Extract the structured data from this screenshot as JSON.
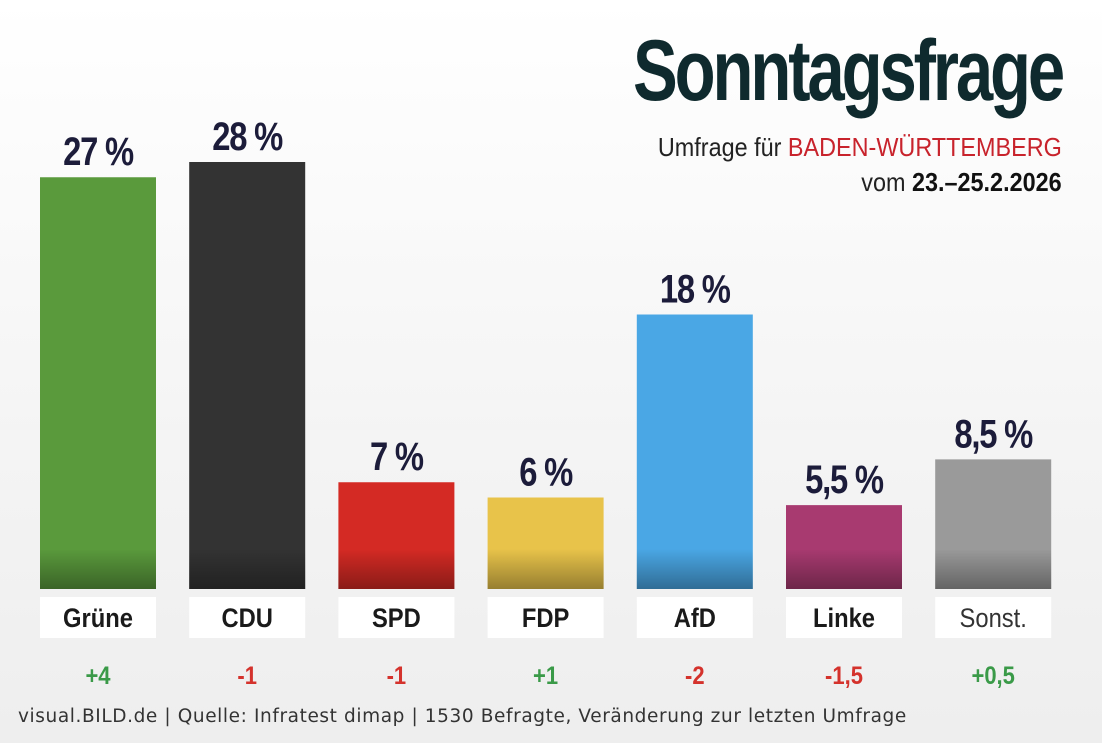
{
  "chart_data": {
    "type": "bar",
    "title": "Sonntagsfrage",
    "subtitle_prefix": "Umfrage für",
    "subtitle_region": "BADEN-WÜRTTEMBERG",
    "date_prefix": "vom",
    "date_range": "23.–25.2.2026",
    "categories": [
      "Grüne",
      "CDU",
      "SPD",
      "FDP",
      "AfD",
      "Linke",
      "Sonst."
    ],
    "values": [
      27,
      28,
      7,
      6,
      18,
      5.5,
      8.5
    ],
    "value_labels": [
      "27 %",
      "28 %",
      "7 %",
      "6 %",
      "18 %",
      "5,5 %",
      "8,5 %"
    ],
    "changes": [
      "+4",
      "-1",
      "-1",
      "+1",
      "-2",
      "-1,5",
      "+0,5"
    ],
    "colors": [
      "#5a9a3c",
      "#333333",
      "#d42a24",
      "#e8c34a",
      "#4aa7e5",
      "#a83a70",
      "#9a9a9a"
    ],
    "change_colors": {
      "positive": "#3a9a48",
      "negative": "#d4322c"
    },
    "ylim": [
      0,
      28
    ],
    "xlabel": "",
    "ylabel": ""
  },
  "footer": "visual.BILD.de | Quelle: Infratest dimap | 1530 Befragte, Veränderung zur letzten Umfrage"
}
